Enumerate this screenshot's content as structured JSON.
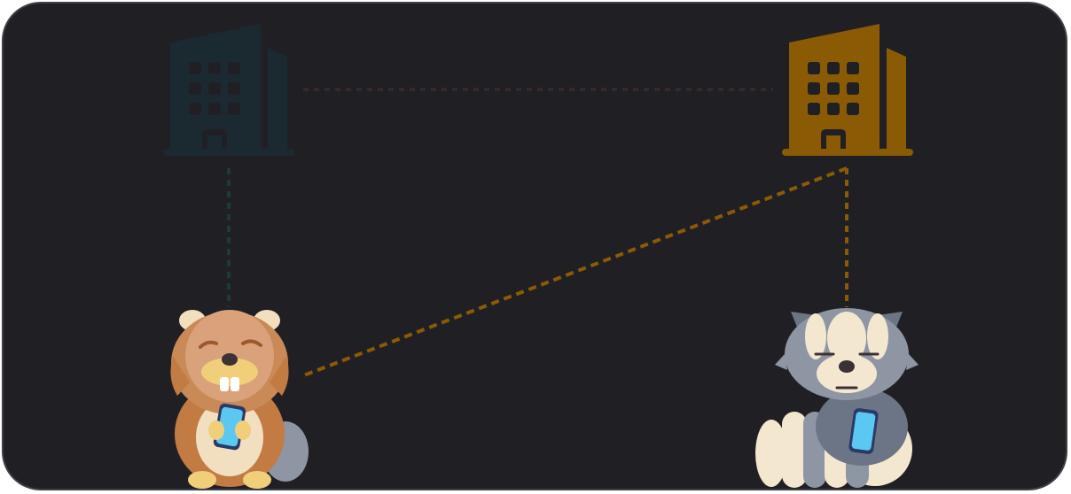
{
  "diagram": {
    "background": "#202024",
    "border_color": "#3f4048",
    "nodes": [
      {
        "id": "building-left",
        "kind": "building",
        "color": "#1b2a30",
        "state": "inactive"
      },
      {
        "id": "building-right",
        "kind": "building",
        "color": "#8a5a05",
        "state": "active"
      },
      {
        "id": "beaver",
        "kind": "animal-with-phone",
        "color": "#c98a58"
      },
      {
        "id": "raccoon",
        "kind": "animal-with-phone",
        "color": "#8a93a3"
      }
    ],
    "links": [
      {
        "from": "building-left",
        "to": "building-right",
        "style": "dashed",
        "color": "#3a2a2c"
      },
      {
        "from": "building-left",
        "to": "beaver",
        "style": "dashed",
        "color": "#1d3a3a"
      },
      {
        "from": "building-right",
        "to": "beaver",
        "style": "dashed",
        "color": "#8a5a05"
      },
      {
        "from": "building-right",
        "to": "raccoon",
        "style": "dashed",
        "color": "#8a5a05"
      }
    ]
  }
}
